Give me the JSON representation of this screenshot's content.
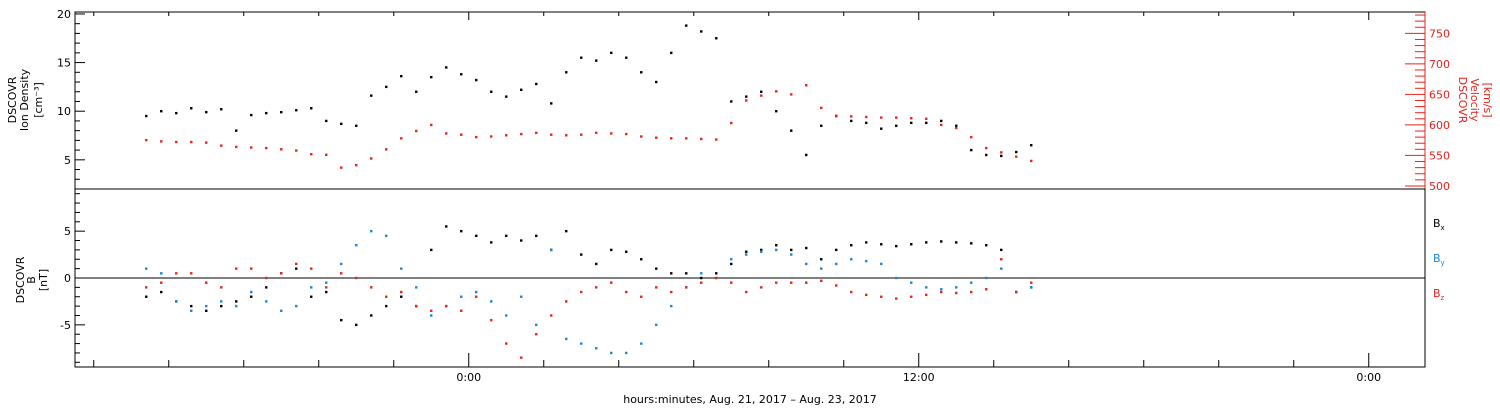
{
  "figure": {
    "xlabel": "hours:minutes, Aug. 21, 2017 – Aug. 23, 2017",
    "x_range_hours": [
      -10.5,
      25.5
    ],
    "x_ticks": [
      {
        "t": 0,
        "label": "0:00"
      },
      {
        "t": 12,
        "label": "12:00"
      },
      {
        "t": 24,
        "label": "0:00"
      }
    ],
    "colors": {
      "black": "#000000",
      "red": "#e8211b",
      "blue": "#1a85d6"
    }
  },
  "chart_data": [
    {
      "type": "scatter",
      "panel": "top",
      "ylabel_left": [
        "DSCOVR",
        "Ion Density",
        "[cm⁻³]"
      ],
      "ylabel_right": [
        "DSCOVR",
        "Velocity",
        "[km/s]"
      ],
      "left_axis": {
        "ylim": [
          2,
          20.2
        ],
        "ticks": [
          5,
          10,
          15,
          20
        ],
        "color": "#000000"
      },
      "right_axis": {
        "ylim": [
          495,
          785
        ],
        "ticks": [
          500,
          550,
          600,
          650,
          700,
          750
        ],
        "color": "#e8211b"
      },
      "series": [
        {
          "axis": "left",
          "color": "#000000",
          "x": [
            -8.6,
            -8.2,
            -7.8,
            -7.4,
            -7.0,
            -6.6,
            -6.2,
            -5.8,
            -5.4,
            -5.0,
            -4.6,
            -4.2,
            -3.8,
            -3.4,
            -3.0,
            -2.6,
            -2.2,
            -1.8,
            -1.4,
            -1.0,
            -0.6,
            -0.2,
            0.2,
            0.6,
            1.0,
            1.4,
            1.8,
            2.2,
            2.6,
            3.0,
            3.4,
            3.8,
            4.2,
            4.6,
            5.0,
            5.4,
            5.8,
            6.2,
            6.6,
            7.0,
            7.4,
            7.8,
            8.2,
            8.6,
            9.0,
            9.4,
            9.8,
            10.2,
            10.6,
            11.0,
            11.4,
            11.8,
            12.2,
            12.6,
            13.0,
            13.4,
            13.8,
            14.2,
            14.6,
            15.0
          ],
          "y": [
            9.5,
            10.0,
            9.8,
            10.3,
            9.9,
            10.2,
            8.0,
            9.6,
            9.8,
            9.9,
            10.1,
            10.3,
            9.0,
            8.7,
            8.5,
            11.6,
            12.5,
            13.6,
            12.0,
            13.5,
            14.5,
            13.8,
            13.2,
            12.0,
            11.5,
            12.2,
            12.8,
            10.8,
            14.0,
            15.5,
            15.2,
            16.0,
            15.5,
            14.0,
            13.0,
            16.0,
            18.8,
            18.2,
            17.5,
            11.0,
            11.5,
            12.0,
            10.0,
            8.0,
            5.5,
            8.5,
            9.5,
            9.0,
            8.8,
            8.2,
            8.5,
            8.8,
            8.8,
            9.0,
            8.5,
            6.0,
            5.5,
            5.4,
            5.8,
            6.5
          ]
        },
        {
          "axis": "right",
          "color": "#e8211b",
          "x": [
            -8.6,
            -8.2,
            -7.8,
            -7.4,
            -7.0,
            -6.6,
            -6.2,
            -5.8,
            -5.4,
            -5.0,
            -4.6,
            -4.2,
            -3.8,
            -3.4,
            -3.0,
            -2.6,
            -2.2,
            -1.8,
            -1.4,
            -1.0,
            -0.6,
            -0.2,
            0.2,
            0.6,
            1.0,
            1.4,
            1.8,
            2.2,
            2.6,
            3.0,
            3.4,
            3.8,
            4.2,
            4.6,
            5.0,
            5.4,
            5.8,
            6.2,
            6.6,
            7.0,
            7.4,
            7.8,
            8.2,
            8.6,
            9.0,
            9.4,
            9.8,
            10.2,
            10.6,
            11.0,
            11.4,
            11.8,
            12.2,
            12.6,
            13.0,
            13.4,
            13.8,
            14.2,
            14.6,
            15.0
          ],
          "y": [
            575,
            573,
            572,
            572,
            571,
            566,
            564,
            563,
            562,
            560,
            558,
            552,
            551,
            530,
            534,
            545,
            560,
            578,
            590,
            600,
            586,
            584,
            580,
            581,
            583,
            585,
            587,
            584,
            583,
            584,
            587,
            586,
            585,
            581,
            579,
            578,
            578,
            577,
            576,
            603,
            640,
            648,
            655,
            650,
            665,
            628,
            615,
            614,
            613,
            612,
            612,
            611,
            610,
            600,
            595,
            580,
            562,
            555,
            548,
            541
          ]
        }
      ]
    },
    {
      "type": "scatter",
      "panel": "bottom",
      "ylabel_left": [
        "DSCOVR",
        "B",
        "[nT]"
      ],
      "ylim": [
        -9.5,
        9.5
      ],
      "ticks": [
        -5,
        0,
        5
      ],
      "zero_line": true,
      "series": [
        {
          "name": "Bx",
          "color": "#000000",
          "x": [
            -8.6,
            -8.2,
            -7.8,
            -7.4,
            -7.0,
            -6.6,
            -6.2,
            -5.8,
            -5.4,
            -5.0,
            -4.6,
            -4.2,
            -3.8,
            -3.4,
            -3.0,
            -2.6,
            -2.2,
            -1.8,
            -1.4,
            -1.0,
            -0.6,
            -0.2,
            0.2,
            0.6,
            1.0,
            1.4,
            1.8,
            2.2,
            2.6,
            3.0,
            3.4,
            3.8,
            4.2,
            4.6,
            5.0,
            5.4,
            5.8,
            6.2,
            6.6,
            7.0,
            7.4,
            7.8,
            8.2,
            8.6,
            9.0,
            9.4,
            9.8,
            10.2,
            10.6,
            11.0,
            11.4,
            11.8,
            12.2,
            12.6,
            13.0,
            13.4,
            13.8,
            14.2,
            14.6,
            15.0
          ],
          "y": [
            -2.0,
            -1.5,
            -2.5,
            -3.0,
            -3.5,
            -3.0,
            -2.5,
            -2.0,
            -1.0,
            0.5,
            1.0,
            -2.0,
            -1.5,
            -4.5,
            -5.0,
            -4.0,
            -3.0,
            -2.0,
            -3.0,
            3.0,
            5.5,
            5.0,
            4.5,
            3.8,
            4.5,
            4.0,
            4.5,
            3.0,
            5.0,
            2.5,
            1.5,
            3.0,
            2.8,
            2.0,
            1.0,
            0.5,
            0.5,
            0.0,
            0.5,
            1.5,
            2.8,
            3.0,
            3.5,
            3.0,
            3.2,
            2.0,
            3.0,
            3.5,
            3.8,
            3.6,
            3.4,
            3.6,
            3.8,
            3.9,
            3.8,
            3.7,
            3.5,
            3.0,
            -1.5,
            -1.0
          ]
        },
        {
          "name": "By",
          "color": "#1a85d6",
          "x": [
            -8.6,
            -8.2,
            -7.8,
            -7.4,
            -7.0,
            -6.6,
            -6.2,
            -5.8,
            -5.4,
            -5.0,
            -4.6,
            -4.2,
            -3.8,
            -3.4,
            -3.0,
            -2.6,
            -2.2,
            -1.8,
            -1.4,
            -1.0,
            -0.6,
            -0.2,
            0.2,
            0.6,
            1.0,
            1.4,
            1.8,
            2.2,
            2.6,
            3.0,
            3.4,
            3.8,
            4.2,
            4.6,
            5.0,
            5.4,
            5.8,
            6.2,
            6.6,
            7.0,
            7.4,
            7.8,
            8.2,
            8.6,
            9.0,
            9.4,
            9.8,
            10.2,
            10.6,
            11.0,
            11.4,
            11.8,
            12.2,
            12.6,
            13.0,
            13.4,
            13.8,
            14.2,
            14.6,
            15.0
          ],
          "y": [
            1.0,
            0.5,
            -2.5,
            -3.5,
            -3.0,
            -2.5,
            -3.0,
            -1.5,
            -2.5,
            -3.5,
            -3.0,
            -1.0,
            -0.5,
            1.5,
            3.5,
            5.0,
            4.5,
            1.0,
            -1.0,
            -4.0,
            -3.0,
            -2.0,
            -1.5,
            -2.5,
            -4.0,
            -2.0,
            -5.0,
            3.0,
            -6.5,
            -7.0,
            -7.5,
            -8.0,
            -8.0,
            -7.0,
            -5.0,
            -3.0,
            -1.0,
            0.5,
            0.0,
            2.0,
            2.5,
            2.8,
            3.0,
            2.5,
            1.5,
            1.0,
            1.5,
            2.0,
            1.8,
            1.5,
            0.0,
            -0.5,
            -1.0,
            -1.2,
            -1.0,
            -0.5,
            0.0,
            1.0,
            -1.5,
            -1.0
          ]
        },
        {
          "name": "Bz",
          "color": "#e8211b",
          "x": [
            -8.6,
            -8.2,
            -7.8,
            -7.4,
            -7.0,
            -6.6,
            -6.2,
            -5.8,
            -5.4,
            -5.0,
            -4.6,
            -4.2,
            -3.8,
            -3.4,
            -3.0,
            -2.6,
            -2.2,
            -1.8,
            -1.4,
            -1.0,
            -0.6,
            -0.2,
            0.2,
            0.6,
            1.0,
            1.4,
            1.8,
            2.2,
            2.6,
            3.0,
            3.4,
            3.8,
            4.2,
            4.6,
            5.0,
            5.4,
            5.8,
            6.2,
            6.6,
            7.0,
            7.4,
            7.8,
            8.2,
            8.6,
            9.0,
            9.4,
            9.8,
            10.2,
            10.6,
            11.0,
            11.4,
            11.8,
            12.2,
            12.6,
            13.0,
            13.4,
            13.8,
            14.2,
            14.6,
            15.0
          ],
          "y": [
            -1.0,
            -0.5,
            0.5,
            0.5,
            -0.5,
            -1.0,
            1.0,
            1.0,
            0.0,
            0.5,
            1.5,
            1.0,
            -1.0,
            0.5,
            0.0,
            -1.0,
            -2.0,
            -1.5,
            -3.0,
            -3.5,
            -3.0,
            -3.5,
            -2.0,
            -4.5,
            -7.0,
            -8.5,
            -6.0,
            -4.0,
            -2.5,
            -1.5,
            -1.0,
            -0.5,
            -1.5,
            -2.0,
            -1.0,
            -1.5,
            -1.0,
            -0.5,
            0.0,
            -0.5,
            -1.5,
            -1.0,
            -0.5,
            -0.5,
            -0.5,
            -0.3,
            -0.8,
            -1.5,
            -1.8,
            -2.0,
            -2.2,
            -2.0,
            -1.8,
            -1.5,
            -1.6,
            -1.5,
            -1.2,
            2.0,
            -1.5,
            -0.5
          ]
        }
      ],
      "legend": [
        {
          "label": "B",
          "sub": "x",
          "color": "#000000"
        },
        {
          "label": "B",
          "sub": "y",
          "color": "#1a85d6"
        },
        {
          "label": "B",
          "sub": "z",
          "color": "#e8211b"
        }
      ]
    }
  ]
}
